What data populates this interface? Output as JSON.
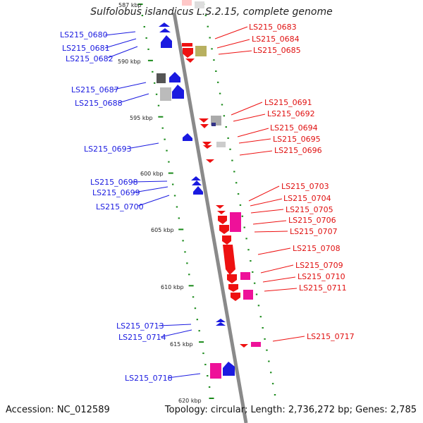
{
  "title": "Sulfolobus islandicus L.S.2.15, complete genome",
  "footer": {
    "accession": "Accession: NC_012589",
    "summary": "Topology: circular; Length: 2,736,272 bp; Genes: 2,785"
  },
  "colors": {
    "forward_strand": "#1a1ae0",
    "reverse_strand": "#ee1111",
    "pink_gene": "#ee1199",
    "gray_gene": "#9a9a9a",
    "olive_gene": "#b8b060",
    "backbone": "#8a8a8a",
    "tick": "#1a8a1a"
  },
  "scale_labels": [
    "587 kbp",
    "590 kbp",
    "595 kbp",
    "600 kbp",
    "605 kbp",
    "610 kbp",
    "615 kbp",
    "620 kbp"
  ],
  "left_genes": [
    "LS215_0680",
    "LS215_0681",
    "LS215_0682",
    "LS215_0687",
    "LS215_0688",
    "LS215_0693",
    "LS215_0698",
    "LS215_0699",
    "LS215_0700",
    "LS215_0713",
    "LS215_0714",
    "LS215_0718"
  ],
  "right_genes": [
    "LS215_0683",
    "LS215_0684",
    "LS215_0685",
    "LS215_0691",
    "LS215_0692",
    "LS215_0694",
    "LS215_0695",
    "LS215_0696",
    "LS215_0703",
    "LS215_0704",
    "LS215_0705",
    "LS215_0706",
    "LS215_0707",
    "LS215_0708",
    "LS215_0709",
    "LS215_0710",
    "LS215_0711",
    "LS215_0717"
  ]
}
